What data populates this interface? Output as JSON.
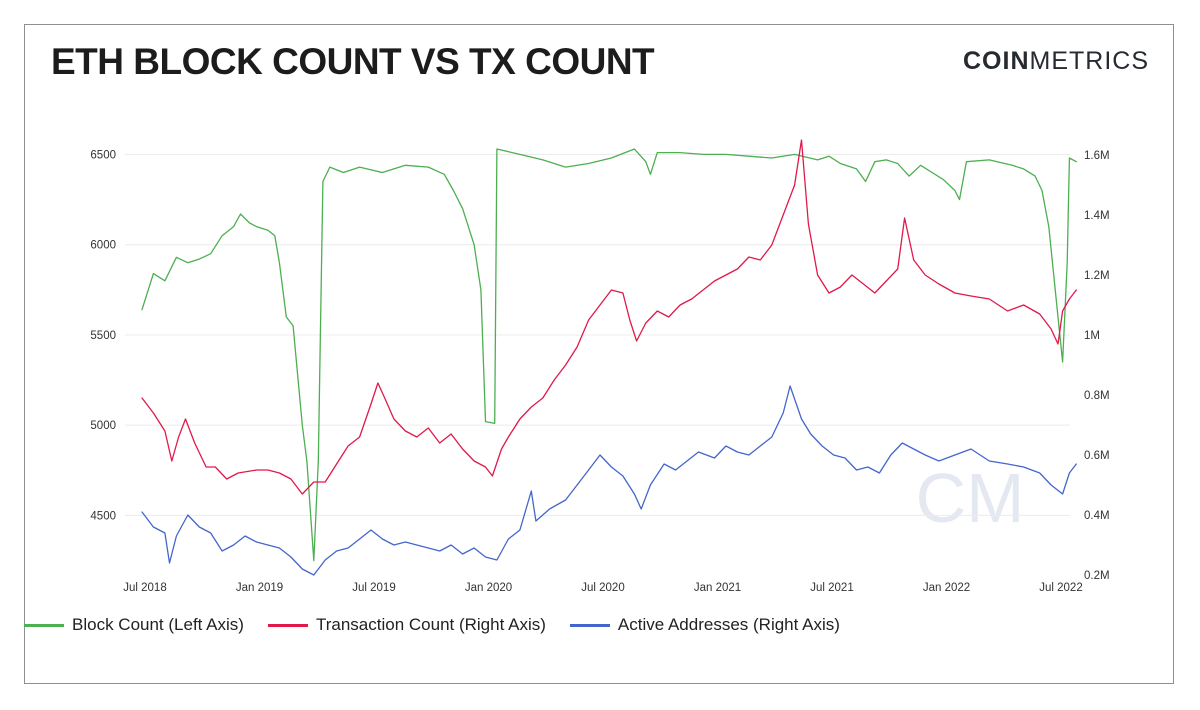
{
  "header": {
    "title": "ETH BLOCK COUNT VS TX COUNT",
    "brand_bold": "COIN",
    "brand_light": "METRICS"
  },
  "watermark": {
    "text": "CM"
  },
  "colors": {
    "block": "#4caf50",
    "tx": "#e0194a",
    "active": "#4466cc",
    "grid": "#ececec",
    "watermark": "#e4e8f1"
  },
  "chart_data": {
    "type": "line",
    "title": "ETH BLOCK COUNT VS TX COUNT",
    "x_labels": [
      "Jul 2018",
      "Jan 2019",
      "Jul 2019",
      "Jan 2020",
      "Jul 2020",
      "Jan 2021",
      "Jul 2021",
      "Jan 2022",
      "Jul 2022"
    ],
    "x_range": [
      2018.42,
      2022.58
    ],
    "left_axis": {
      "range": [
        4170,
        6580
      ],
      "ticks": [
        4500,
        5000,
        5500,
        6000,
        6500
      ],
      "tick_labels": [
        "4500",
        "5000",
        "5500",
        "6000",
        "6500"
      ]
    },
    "right_axis": {
      "range": [
        0.2,
        1.65
      ],
      "ticks": [
        0.2,
        0.4,
        0.6,
        0.8,
        1.0,
        1.2,
        1.4,
        1.6
      ],
      "tick_labels": [
        "0.2M",
        "0.4M",
        "0.6M",
        "0.8M",
        "1M",
        "1.2M",
        "1.4M",
        "1.6M"
      ]
    },
    "series": [
      {
        "name": "Block Count (Left Axis)",
        "axis": "left",
        "points": [
          [
            2018.5,
            5640
          ],
          [
            2018.55,
            5840
          ],
          [
            2018.6,
            5800
          ],
          [
            2018.65,
            5930
          ],
          [
            2018.7,
            5900
          ],
          [
            2018.75,
            5920
          ],
          [
            2018.8,
            5950
          ],
          [
            2018.85,
            6050
          ],
          [
            2018.9,
            6100
          ],
          [
            2018.93,
            6170
          ],
          [
            2018.97,
            6120
          ],
          [
            2019.0,
            6100
          ],
          [
            2019.05,
            6080
          ],
          [
            2019.08,
            6050
          ],
          [
            2019.1,
            5900
          ],
          [
            2019.13,
            5600
          ],
          [
            2019.16,
            5550
          ],
          [
            2019.2,
            5000
          ],
          [
            2019.22,
            4800
          ],
          [
            2019.25,
            4250
          ],
          [
            2019.27,
            4800
          ],
          [
            2019.29,
            6350
          ],
          [
            2019.32,
            6430
          ],
          [
            2019.38,
            6400
          ],
          [
            2019.45,
            6430
          ],
          [
            2019.55,
            6400
          ],
          [
            2019.65,
            6440
          ],
          [
            2019.75,
            6430
          ],
          [
            2019.82,
            6390
          ],
          [
            2019.86,
            6300
          ],
          [
            2019.9,
            6200
          ],
          [
            2019.95,
            6000
          ],
          [
            2019.98,
            5750
          ],
          [
            2020.0,
            5020
          ],
          [
            2020.04,
            5010
          ],
          [
            2020.05,
            6530
          ],
          [
            2020.15,
            6500
          ],
          [
            2020.25,
            6470
          ],
          [
            2020.35,
            6430
          ],
          [
            2020.45,
            6450
          ],
          [
            2020.55,
            6480
          ],
          [
            2020.65,
            6530
          ],
          [
            2020.7,
            6460
          ],
          [
            2020.72,
            6390
          ],
          [
            2020.75,
            6510
          ],
          [
            2020.85,
            6510
          ],
          [
            2020.95,
            6500
          ],
          [
            2021.05,
            6500
          ],
          [
            2021.15,
            6490
          ],
          [
            2021.25,
            6480
          ],
          [
            2021.35,
            6500
          ],
          [
            2021.45,
            6470
          ],
          [
            2021.5,
            6490
          ],
          [
            2021.55,
            6450
          ],
          [
            2021.62,
            6420
          ],
          [
            2021.66,
            6350
          ],
          [
            2021.7,
            6460
          ],
          [
            2021.75,
            6470
          ],
          [
            2021.8,
            6450
          ],
          [
            2021.85,
            6380
          ],
          [
            2021.9,
            6440
          ],
          [
            2021.95,
            6400
          ],
          [
            2022.0,
            6360
          ],
          [
            2022.05,
            6300
          ],
          [
            2022.07,
            6250
          ],
          [
            2022.1,
            6460
          ],
          [
            2022.2,
            6470
          ],
          [
            2022.3,
            6440
          ],
          [
            2022.35,
            6420
          ],
          [
            2022.4,
            6380
          ],
          [
            2022.43,
            6300
          ],
          [
            2022.46,
            6100
          ],
          [
            2022.48,
            5850
          ],
          [
            2022.5,
            5600
          ],
          [
            2022.52,
            5350
          ],
          [
            2022.54,
            5900
          ],
          [
            2022.55,
            6480
          ],
          [
            2022.58,
            6460
          ]
        ]
      },
      {
        "name": "Transaction Count (Right Axis)",
        "axis": "right",
        "points": [
          [
            2018.5,
            0.79
          ],
          [
            2018.55,
            0.74
          ],
          [
            2018.6,
            0.68
          ],
          [
            2018.63,
            0.58
          ],
          [
            2018.66,
            0.66
          ],
          [
            2018.69,
            0.72
          ],
          [
            2018.73,
            0.64
          ],
          [
            2018.78,
            0.56
          ],
          [
            2018.82,
            0.56
          ],
          [
            2018.87,
            0.52
          ],
          [
            2018.92,
            0.54
          ],
          [
            2019.0,
            0.55
          ],
          [
            2019.05,
            0.55
          ],
          [
            2019.1,
            0.54
          ],
          [
            2019.15,
            0.52
          ],
          [
            2019.2,
            0.47
          ],
          [
            2019.25,
            0.51
          ],
          [
            2019.3,
            0.51
          ],
          [
            2019.35,
            0.57
          ],
          [
            2019.4,
            0.63
          ],
          [
            2019.45,
            0.66
          ],
          [
            2019.5,
            0.77
          ],
          [
            2019.53,
            0.84
          ],
          [
            2019.56,
            0.79
          ],
          [
            2019.6,
            0.72
          ],
          [
            2019.65,
            0.68
          ],
          [
            2019.7,
            0.66
          ],
          [
            2019.75,
            0.69
          ],
          [
            2019.8,
            0.64
          ],
          [
            2019.85,
            0.67
          ],
          [
            2019.9,
            0.62
          ],
          [
            2019.95,
            0.58
          ],
          [
            2020.0,
            0.56
          ],
          [
            2020.03,
            0.53
          ],
          [
            2020.07,
            0.62
          ],
          [
            2020.1,
            0.66
          ],
          [
            2020.15,
            0.72
          ],
          [
            2020.2,
            0.76
          ],
          [
            2020.25,
            0.79
          ],
          [
            2020.3,
            0.85
          ],
          [
            2020.35,
            0.9
          ],
          [
            2020.4,
            0.96
          ],
          [
            2020.45,
            1.05
          ],
          [
            2020.5,
            1.1
          ],
          [
            2020.55,
            1.15
          ],
          [
            2020.6,
            1.14
          ],
          [
            2020.63,
            1.05
          ],
          [
            2020.66,
            0.98
          ],
          [
            2020.7,
            1.04
          ],
          [
            2020.75,
            1.08
          ],
          [
            2020.8,
            1.06
          ],
          [
            2020.85,
            1.1
          ],
          [
            2020.9,
            1.12
          ],
          [
            2020.95,
            1.15
          ],
          [
            2021.0,
            1.18
          ],
          [
            2021.05,
            1.2
          ],
          [
            2021.1,
            1.22
          ],
          [
            2021.15,
            1.26
          ],
          [
            2021.2,
            1.25
          ],
          [
            2021.25,
            1.3
          ],
          [
            2021.3,
            1.4
          ],
          [
            2021.35,
            1.5
          ],
          [
            2021.38,
            1.65
          ],
          [
            2021.41,
            1.37
          ],
          [
            2021.45,
            1.2
          ],
          [
            2021.5,
            1.14
          ],
          [
            2021.55,
            1.16
          ],
          [
            2021.6,
            1.2
          ],
          [
            2021.65,
            1.17
          ],
          [
            2021.7,
            1.14
          ],
          [
            2021.75,
            1.18
          ],
          [
            2021.8,
            1.22
          ],
          [
            2021.83,
            1.39
          ],
          [
            2021.87,
            1.25
          ],
          [
            2021.92,
            1.2
          ],
          [
            2021.98,
            1.17
          ],
          [
            2022.05,
            1.14
          ],
          [
            2022.12,
            1.13
          ],
          [
            2022.2,
            1.12
          ],
          [
            2022.28,
            1.08
          ],
          [
            2022.35,
            1.1
          ],
          [
            2022.42,
            1.07
          ],
          [
            2022.47,
            1.02
          ],
          [
            2022.5,
            0.97
          ],
          [
            2022.52,
            1.08
          ],
          [
            2022.55,
            1.12
          ],
          [
            2022.58,
            1.15
          ]
        ]
      },
      {
        "name": "Active Addresses (Right Axis)",
        "axis": "right",
        "points": [
          [
            2018.5,
            0.41
          ],
          [
            2018.55,
            0.36
          ],
          [
            2018.6,
            0.34
          ],
          [
            2018.62,
            0.24
          ],
          [
            2018.65,
            0.33
          ],
          [
            2018.7,
            0.4
          ],
          [
            2018.75,
            0.36
          ],
          [
            2018.8,
            0.34
          ],
          [
            2018.85,
            0.28
          ],
          [
            2018.9,
            0.3
          ],
          [
            2018.95,
            0.33
          ],
          [
            2019.0,
            0.31
          ],
          [
            2019.05,
            0.3
          ],
          [
            2019.1,
            0.29
          ],
          [
            2019.15,
            0.26
          ],
          [
            2019.2,
            0.22
          ],
          [
            2019.25,
            0.2
          ],
          [
            2019.3,
            0.25
          ],
          [
            2019.35,
            0.28
          ],
          [
            2019.4,
            0.29
          ],
          [
            2019.45,
            0.32
          ],
          [
            2019.5,
            0.35
          ],
          [
            2019.55,
            0.32
          ],
          [
            2019.6,
            0.3
          ],
          [
            2019.65,
            0.31
          ],
          [
            2019.7,
            0.3
          ],
          [
            2019.75,
            0.29
          ],
          [
            2019.8,
            0.28
          ],
          [
            2019.85,
            0.3
          ],
          [
            2019.9,
            0.27
          ],
          [
            2019.95,
            0.29
          ],
          [
            2020.0,
            0.26
          ],
          [
            2020.05,
            0.25
          ],
          [
            2020.1,
            0.32
          ],
          [
            2020.15,
            0.35
          ],
          [
            2020.2,
            0.48
          ],
          [
            2020.22,
            0.38
          ],
          [
            2020.28,
            0.42
          ],
          [
            2020.35,
            0.45
          ],
          [
            2020.4,
            0.5
          ],
          [
            2020.45,
            0.55
          ],
          [
            2020.5,
            0.6
          ],
          [
            2020.55,
            0.56
          ],
          [
            2020.6,
            0.53
          ],
          [
            2020.65,
            0.47
          ],
          [
            2020.68,
            0.42
          ],
          [
            2020.72,
            0.5
          ],
          [
            2020.78,
            0.57
          ],
          [
            2020.83,
            0.55
          ],
          [
            2020.88,
            0.58
          ],
          [
            2020.93,
            0.61
          ],
          [
            2021.0,
            0.59
          ],
          [
            2021.05,
            0.63
          ],
          [
            2021.1,
            0.61
          ],
          [
            2021.15,
            0.6
          ],
          [
            2021.2,
            0.63
          ],
          [
            2021.25,
            0.66
          ],
          [
            2021.3,
            0.74
          ],
          [
            2021.33,
            0.83
          ],
          [
            2021.38,
            0.72
          ],
          [
            2021.42,
            0.67
          ],
          [
            2021.47,
            0.63
          ],
          [
            2021.52,
            0.6
          ],
          [
            2021.57,
            0.59
          ],
          [
            2021.62,
            0.55
          ],
          [
            2021.67,
            0.56
          ],
          [
            2021.72,
            0.54
          ],
          [
            2021.77,
            0.6
          ],
          [
            2021.82,
            0.64
          ],
          [
            2021.87,
            0.62
          ],
          [
            2021.92,
            0.6
          ],
          [
            2021.98,
            0.58
          ],
          [
            2022.05,
            0.6
          ],
          [
            2022.12,
            0.62
          ],
          [
            2022.2,
            0.58
          ],
          [
            2022.28,
            0.57
          ],
          [
            2022.35,
            0.56
          ],
          [
            2022.42,
            0.54
          ],
          [
            2022.47,
            0.5
          ],
          [
            2022.52,
            0.47
          ],
          [
            2022.55,
            0.54
          ],
          [
            2022.58,
            0.57
          ]
        ]
      }
    ],
    "legend": {
      "position": "bottom-left",
      "entries": [
        "Block Count (Left Axis)",
        "Transaction Count (Right Axis)",
        "Active Addresses (Right Axis)"
      ]
    }
  }
}
